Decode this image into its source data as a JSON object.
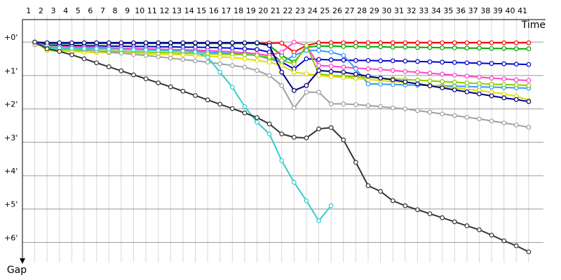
{
  "chart_data": {
    "type": "line",
    "x_label": "Time",
    "y_label": "Gap",
    "x": [
      1,
      2,
      3,
      4,
      5,
      6,
      7,
      8,
      9,
      10,
      11,
      12,
      13,
      14,
      15,
      16,
      17,
      18,
      19,
      20,
      21,
      22,
      23,
      24,
      25,
      26,
      27,
      28,
      29,
      30,
      31,
      32,
      33,
      34,
      35,
      36,
      37,
      38,
      39,
      40,
      41
    ],
    "xlim": [
      0,
      42.2
    ],
    "xticks": [
      1,
      2,
      3,
      4,
      5,
      6,
      7,
      8,
      9,
      10,
      11,
      12,
      13,
      14,
      15,
      16,
      17,
      18,
      19,
      20,
      21,
      22,
      23,
      24,
      25,
      26,
      27,
      28,
      29,
      30,
      31,
      32,
      33,
      34,
      35,
      36,
      37,
      38,
      39,
      40,
      41
    ],
    "ylim": [
      -0.8,
      6.6
    ],
    "yticks": [
      {
        "value": 0,
        "label": "+0'"
      },
      {
        "value": 1,
        "label": "+1'"
      },
      {
        "value": 2,
        "label": "+2'"
      },
      {
        "value": 3,
        "label": "+3'"
      },
      {
        "value": 4,
        "label": "+4'"
      },
      {
        "value": 5,
        "label": "+5'"
      },
      {
        "value": 6,
        "label": "+6'"
      }
    ],
    "y_inverted": true,
    "grid": true,
    "series": [
      {
        "color": "#ff0000",
        "values": [
          0,
          0.05,
          0.04,
          0.04,
          0.03,
          0.03,
          0.03,
          0.03,
          0.03,
          0.03,
          0.03,
          0.03,
          0.03,
          0.03,
          0.03,
          0.03,
          0.03,
          0.03,
          0.03,
          0.03,
          0.03,
          0.3,
          0.1,
          0.02,
          0.02,
          0.02,
          0.02,
          0.02,
          0.02,
          0.02,
          0.02,
          0.02,
          0.02,
          0.02,
          0.02,
          0.02,
          0.02,
          0.02,
          0.02,
          0.02,
          0.02
        ]
      },
      {
        "color": "#00aa00",
        "values": [
          0,
          0.05,
          0.05,
          0.04,
          0.04,
          0.04,
          0.04,
          0.04,
          0.04,
          0.04,
          0.04,
          0.04,
          0.04,
          0.04,
          0.04,
          0.04,
          0.04,
          0.04,
          0.04,
          0.1,
          0.4,
          0.6,
          0.15,
          0.12,
          0.12,
          0.13,
          0.13,
          0.14,
          0.14,
          0.15,
          0.15,
          0.16,
          0.16,
          0.17,
          0.17,
          0.18,
          0.18,
          0.19,
          0.19,
          0.2,
          0.2
        ]
      },
      {
        "color": "#0000cc",
        "values": [
          0,
          0.1,
          0.1,
          0.1,
          0.11,
          0.11,
          0.12,
          0.12,
          0.13,
          0.13,
          0.14,
          0.14,
          0.15,
          0.15,
          0.16,
          0.17,
          0.18,
          0.2,
          0.22,
          0.3,
          0.6,
          0.8,
          0.5,
          0.52,
          0.53,
          0.54,
          0.55,
          0.55,
          0.56,
          0.56,
          0.57,
          0.58,
          0.59,
          0.6,
          0.61,
          0.62,
          0.63,
          0.64,
          0.65,
          0.66,
          0.67
        ]
      },
      {
        "color": "#ff44cc",
        "values": [
          0,
          0.12,
          0.13,
          0.14,
          0.15,
          0.16,
          0.17,
          0.18,
          0.19,
          0.2,
          0.21,
          0.22,
          0.23,
          0.24,
          0.25,
          0.27,
          0.29,
          0.32,
          0.35,
          0.4,
          0.3,
          0.0,
          0.1,
          0.7,
          0.72,
          0.75,
          0.78,
          0.8,
          0.82,
          0.85,
          0.88,
          0.9,
          0.93,
          0.96,
          0.99,
          1.02,
          1.05,
          1.08,
          1.1,
          1.13,
          1.15
        ]
      },
      {
        "color": "#3399ff",
        "values": [
          0,
          0.15,
          0.17,
          0.18,
          0.19,
          0.2,
          0.21,
          0.22,
          0.23,
          0.24,
          0.25,
          0.26,
          0.27,
          0.28,
          0.3,
          0.32,
          0.34,
          0.36,
          0.4,
          0.5,
          0.6,
          0.4,
          0.25,
          0.25,
          0.3,
          0.4,
          0.8,
          1.25,
          1.26,
          1.27,
          1.28,
          1.29,
          1.3,
          1.31,
          1.32,
          1.33,
          1.34,
          1.35,
          1.36,
          1.37,
          1.38
        ]
      },
      {
        "color": "#88cc00",
        "values": [
          0,
          0.2,
          0.22,
          0.24,
          0.25,
          0.26,
          0.27,
          0.28,
          0.29,
          0.3,
          0.31,
          0.32,
          0.33,
          0.34,
          0.35,
          0.36,
          0.37,
          0.38,
          0.4,
          0.45,
          0.55,
          0.65,
          0.1,
          0.95,
          1.0,
          1.02,
          1.04,
          1.06,
          1.08,
          1.1,
          1.12,
          1.14,
          1.16,
          1.18,
          1.2,
          1.22,
          1.24,
          1.26,
          1.27,
          1.28,
          1.3
        ]
      },
      {
        "color": "#dddd00",
        "values": [
          0,
          0.25,
          0.27,
          0.28,
          0.3,
          0.31,
          0.32,
          0.33,
          0.34,
          0.35,
          0.36,
          0.37,
          0.38,
          0.4,
          0.42,
          0.44,
          0.46,
          0.5,
          0.55,
          0.6,
          0.7,
          0.9,
          0.95,
          1.0,
          1.03,
          1.06,
          1.09,
          1.12,
          1.15,
          1.18,
          1.21,
          1.25,
          1.29,
          1.33,
          1.37,
          1.41,
          1.45,
          1.5,
          1.55,
          1.62,
          1.74
        ]
      },
      {
        "color": "#000080",
        "values": [
          0,
          0.02,
          0.02,
          0.02,
          0.02,
          0.02,
          0.02,
          0.02,
          0.02,
          0.02,
          0.02,
          0.02,
          0.02,
          0.02,
          0.02,
          0.02,
          0.02,
          0.02,
          0.02,
          0.1,
          0.9,
          1.45,
          1.3,
          0.85,
          0.88,
          0.9,
          0.96,
          1.02,
          1.08,
          1.13,
          1.19,
          1.25,
          1.31,
          1.37,
          1.43,
          1.49,
          1.55,
          1.61,
          1.67,
          1.72,
          1.78
        ]
      },
      {
        "color": "#a0a0a0",
        "values": [
          0.08,
          0.12,
          0.15,
          0.18,
          0.22,
          0.26,
          0.3,
          0.33,
          0.37,
          0.4,
          0.44,
          0.48,
          0.52,
          0.56,
          0.6,
          0.65,
          0.7,
          0.75,
          0.85,
          1.0,
          1.3,
          1.97,
          1.5,
          1.5,
          1.85,
          1.85,
          1.87,
          1.9,
          1.93,
          1.97,
          2.0,
          2.05,
          2.1,
          2.15,
          2.2,
          2.25,
          2.3,
          2.36,
          2.42,
          2.48,
          2.55
        ]
      },
      {
        "color": "#33cccc",
        "values": [
          0,
          0.18,
          0.18,
          0.19,
          0.2,
          0.2,
          0.21,
          0.22,
          0.23,
          0.24,
          0.25,
          0.26,
          0.27,
          0.3,
          0.45,
          0.9,
          1.35,
          1.93,
          2.4,
          2.75,
          3.55,
          4.2,
          4.75,
          5.35,
          4.9,
          null,
          null,
          null,
          null,
          null,
          null,
          null,
          null,
          null,
          null,
          null,
          null,
          null,
          null,
          null,
          null
        ]
      },
      {
        "color": "#333333",
        "values": [
          0,
          0.2,
          0.28,
          0.38,
          0.5,
          0.62,
          0.74,
          0.86,
          0.98,
          1.1,
          1.22,
          1.34,
          1.47,
          1.6,
          1.73,
          1.86,
          1.99,
          2.12,
          2.26,
          2.45,
          2.75,
          2.85,
          2.87,
          2.6,
          2.56,
          2.93,
          3.6,
          4.3,
          4.47,
          4.75,
          4.9,
          5.02,
          5.14,
          5.26,
          5.38,
          5.5,
          5.62,
          5.78,
          5.95,
          6.1,
          6.28
        ]
      }
    ]
  }
}
